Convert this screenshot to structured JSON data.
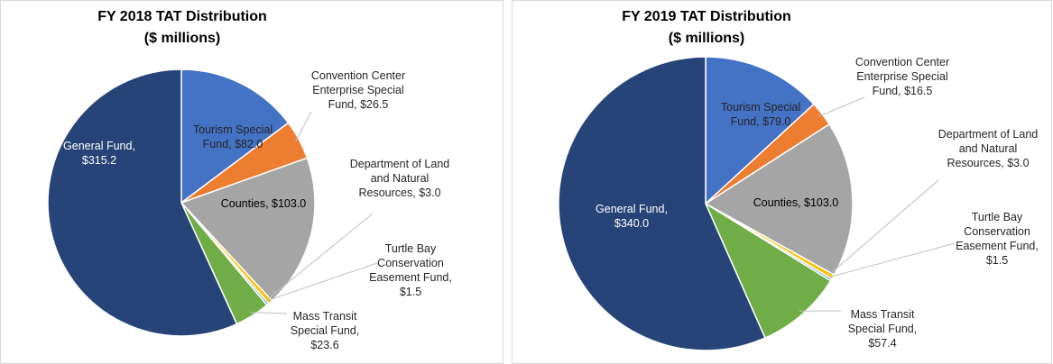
{
  "chart_data": [
    {
      "type": "pie",
      "title": "FY 2018 TAT Distribution",
      "subtitle": "($ millions)",
      "categories": [
        "Tourism Special Fund,",
        "Convention Center Enterprise Special Fund,",
        "Counties,",
        "Department of Land and Natural Resources,",
        "Turtle Bay Conservation Easement Fund,",
        "Mass Transit Special Fund,",
        "General Fund,"
      ],
      "values": [
        82.0,
        26.5,
        103.0,
        3.0,
        1.5,
        23.6,
        315.2
      ],
      "value_labels": [
        "$82.0",
        "$26.5",
        "$103.0",
        "$3.0",
        "$1.5",
        "$23.6",
        "$315.2"
      ],
      "colors": [
        "#4472c4",
        "#ed7d31",
        "#a5a5a5",
        "#ffc000",
        "#5b9bd5",
        "#70ad47",
        "#264478"
      ]
    },
    {
      "type": "pie",
      "title": "FY 2019 TAT Distribution",
      "subtitle": "($ millions)",
      "categories": [
        "Tourism Special Fund,",
        "Convention Center Enterprise Special Fund,",
        "Counties,",
        "Department of Land and Natural Resources,",
        "Turtle Bay Conservation Easement Fund,",
        "Mass Transit Special Fund,",
        "General Fund,"
      ],
      "values": [
        79.0,
        16.5,
        103.0,
        3.0,
        1.5,
        57.4,
        340.0
      ],
      "value_labels": [
        "$79.0",
        "$16.5",
        "$103.0",
        "$3.0",
        "$1.5",
        "$57.4",
        "$340.0"
      ],
      "colors": [
        "#4472c4",
        "#ed7d31",
        "#a5a5a5",
        "#ffc000",
        "#5b9bd5",
        "#70ad47",
        "#264478"
      ]
    }
  ]
}
